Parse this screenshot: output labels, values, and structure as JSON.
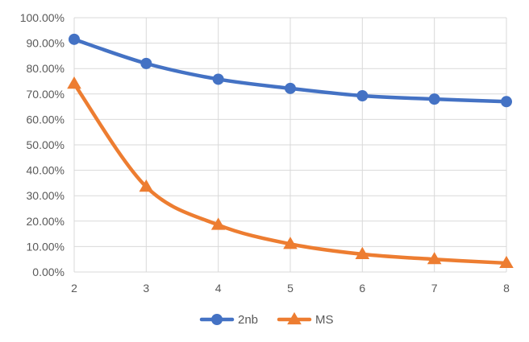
{
  "chart_data": {
    "type": "line",
    "title": "",
    "xlabel": "",
    "ylabel": "",
    "x": [
      2,
      3,
      4,
      5,
      6,
      7,
      8
    ],
    "xlim": [
      2,
      8
    ],
    "ylim": [
      0,
      100
    ],
    "y_tick_values": [
      0,
      10,
      20,
      30,
      40,
      50,
      60,
      70,
      80,
      90,
      100
    ],
    "y_tick_labels": [
      "0.00%",
      "10.00%",
      "20.00%",
      "30.00%",
      "40.00%",
      "50.00%",
      "60.00%",
      "70.00%",
      "80.00%",
      "90.00%",
      "100.00%"
    ],
    "grid": true,
    "legend_position": "bottom",
    "smooth": true,
    "series": [
      {
        "name": "2nb",
        "values": [
          91.5,
          82.0,
          75.8,
          72.2,
          69.3,
          68.0,
          67.0
        ],
        "color": "#4472C4",
        "marker": "circle"
      },
      {
        "name": "MS",
        "values": [
          74.0,
          33.5,
          18.5,
          11.0,
          7.0,
          5.0,
          3.5
        ],
        "color": "#ED7D31",
        "marker": "triangle"
      }
    ]
  }
}
